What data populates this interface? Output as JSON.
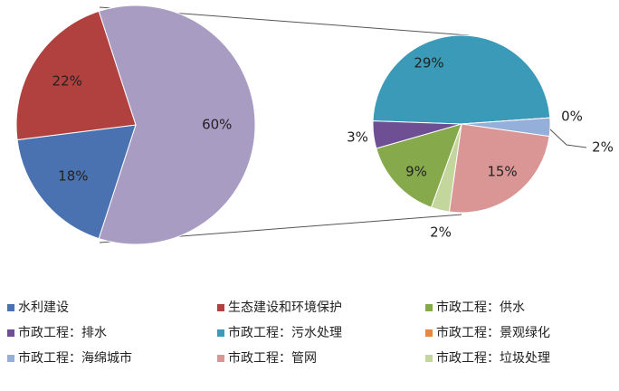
{
  "chart_data": {
    "type": "pie-of-pie",
    "categories": [
      "水利建设",
      "生态建设和环境保护",
      "市政工程：供水",
      "市政工程：排水",
      "市政工程：污水处理",
      "市政工程：景观绿化",
      "市政工程：海绵城市",
      "市政工程：管网",
      "市政工程：垃圾处理"
    ],
    "values": [
      18,
      22,
      9,
      3,
      29,
      0,
      2,
      15,
      2
    ],
    "value_labels": [
      "18%",
      "22%",
      "9%",
      "3%",
      "29%",
      "0%",
      "2%",
      "15%",
      "2%"
    ],
    "colors": [
      "#4a72b0",
      "#b0413e",
      "#86a94c",
      "#6e4f93",
      "#3a9ab7",
      "#e8893a",
      "#94afd9",
      "#d99694",
      "#c3d69b"
    ],
    "other": 60,
    "other_label": "60%",
    "other_color": "#a89cc2"
  }
}
